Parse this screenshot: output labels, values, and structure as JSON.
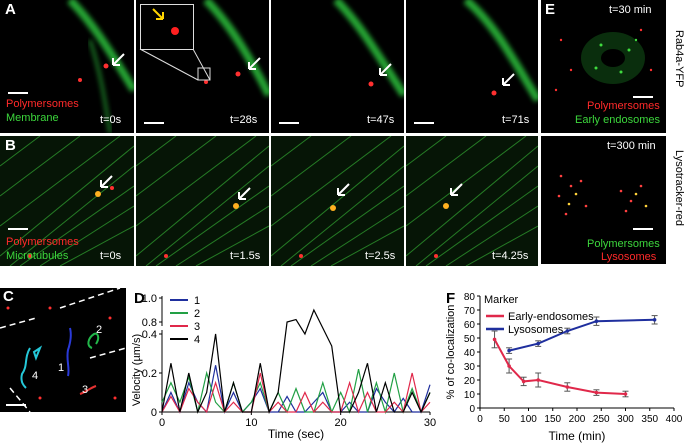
{
  "panels": {
    "A": {
      "letter": "A",
      "labels": [
        "Polymersomes",
        "Membrane"
      ],
      "times": [
        "t=0s",
        "t=28s",
        "t=47s",
        "t=71s"
      ]
    },
    "B": {
      "letter": "B",
      "labels": [
        "Polymersomes",
        "Microtubules"
      ],
      "times": [
        "t=0s",
        "t=1.5s",
        "t=2.5s",
        "t=4.25s"
      ]
    },
    "C": {
      "letter": "C",
      "track_labels": [
        "1",
        "2",
        "3",
        "4"
      ]
    },
    "D": {
      "letter": "D"
    },
    "E": {
      "letter": "E",
      "top_time": "t=30 min",
      "top_labels": [
        "Polymersomes",
        "Early endosomes"
      ],
      "top_side": "Rab4a-YFP",
      "bottom_time": "t=300 min",
      "bottom_labels": [
        "Polymersomes",
        "Lysosomes"
      ],
      "bottom_side": "Lysotracker-red"
    },
    "F": {
      "letter": "F"
    }
  },
  "colors": {
    "series1": "#1f2f9e",
    "series2": "#22a045",
    "series3": "#e0284a",
    "series4": "#000000",
    "early": "#e0284a",
    "lyso": "#1f2f9e"
  },
  "chart_data": [
    {
      "panel": "D",
      "type": "line",
      "xlabel": "Time (sec)",
      "ylabel": "Velocity (µm/s)",
      "xlim": [
        0,
        30
      ],
      "x_ticks": [
        "0",
        "10",
        "20",
        "30"
      ],
      "y_ticks_lower": [
        "0",
        "0.2",
        "0.4"
      ],
      "y_ticks_upper": [
        "0.8",
        "1.0"
      ],
      "legend_position": "top-left",
      "series": [
        {
          "name": "1",
          "x": [
            0,
            1,
            2,
            3,
            4,
            5,
            6,
            7,
            8,
            9,
            10,
            11,
            12,
            13,
            14,
            15,
            16,
            17,
            18,
            19,
            20,
            21,
            22,
            23,
            24,
            25,
            26,
            27,
            28,
            29,
            30
          ],
          "y": [
            0.0,
            0.1,
            0.0,
            0.15,
            0.05,
            0.0,
            0.24,
            0.0,
            0.1,
            0.0,
            0.05,
            0.12,
            0.0,
            0.0,
            0.08,
            0.0,
            0.0,
            0.05,
            0.1,
            0.0,
            0.0,
            0.05,
            0.0,
            0.0,
            0.12,
            0.05,
            0.0,
            0.07,
            0.0,
            0.0,
            0.14
          ]
        },
        {
          "name": "2",
          "x": [
            0,
            1,
            2,
            3,
            4,
            5,
            6,
            7,
            8,
            9,
            10,
            11,
            12,
            13,
            14,
            15,
            16,
            17,
            18,
            19,
            20,
            21,
            22,
            23,
            24,
            25,
            26,
            27,
            28,
            29,
            30
          ],
          "y": [
            0.05,
            0.15,
            0.05,
            0.18,
            0.0,
            0.2,
            0.05,
            0.0,
            0.15,
            0.0,
            0.05,
            0.15,
            0.0,
            0.1,
            0.0,
            0.12,
            0.0,
            0.0,
            0.15,
            0.0,
            0.1,
            0.0,
            0.22,
            0.0,
            0.15,
            0.0,
            0.2,
            0.0,
            0.12,
            0.0,
            0.1
          ]
        },
        {
          "name": "3",
          "x": [
            0,
            1,
            2,
            3,
            4,
            5,
            6,
            7,
            8,
            9,
            10,
            11,
            12,
            13,
            14,
            15,
            16,
            17,
            18,
            19,
            20,
            21,
            22,
            23,
            24,
            25,
            26,
            27,
            28,
            29,
            30
          ],
          "y": [
            0.0,
            0.08,
            0.0,
            0.12,
            0.05,
            0.0,
            0.15,
            0.0,
            0.05,
            0.0,
            0.0,
            0.2,
            0.0,
            0.05,
            0.0,
            0.0,
            0.1,
            0.0,
            0.05,
            0.0,
            0.0,
            0.15,
            0.0,
            0.1,
            0.0,
            0.0,
            0.05,
            0.0,
            0.2,
            0.0,
            0.05
          ]
        },
        {
          "name": "4",
          "x": [
            0,
            1,
            2,
            3,
            4,
            5,
            6,
            7,
            8,
            9,
            10,
            11,
            12,
            13,
            14,
            15,
            16,
            17,
            18,
            19,
            20,
            21,
            22,
            23,
            24,
            25,
            26,
            27,
            28,
            29,
            30
          ],
          "y": [
            0.0,
            0.25,
            0.0,
            0.2,
            0.0,
            0.1,
            0.4,
            0.0,
            0.15,
            0.0,
            0.0,
            0.25,
            0.0,
            0.1,
            0.8,
            0.82,
            0.7,
            0.9,
            0.75,
            0.6,
            0.0,
            0.0,
            0.1,
            0.25,
            0.0,
            0.15,
            0.0,
            0.0,
            0.1,
            0.0,
            0.1
          ]
        }
      ]
    },
    {
      "panel": "F",
      "type": "line",
      "xlabel": "Time (min)",
      "ylabel": "% of co-localization",
      "legend_title": "Marker",
      "legend_position": "top-left",
      "xlim": [
        0,
        400
      ],
      "ylim": [
        0,
        80
      ],
      "x_ticks": [
        "0",
        "50",
        "100",
        "150",
        "200",
        "250",
        "300",
        "350",
        "400"
      ],
      "y_ticks": [
        "0",
        "10",
        "20",
        "30",
        "40",
        "50",
        "60",
        "70",
        "80"
      ],
      "series": [
        {
          "name": "Early-endosomes",
          "x": [
            30,
            60,
            90,
            120,
            180,
            240,
            300
          ],
          "y": [
            49,
            30,
            19,
            20,
            15,
            11,
            10
          ],
          "err": [
            6,
            5,
            3,
            5,
            3,
            2,
            2
          ]
        },
        {
          "name": "Lysosomes",
          "x": [
            60,
            120,
            180,
            240,
            360
          ],
          "y": [
            41,
            46,
            55,
            62,
            63
          ],
          "err": [
            2,
            2,
            2,
            3,
            3
          ]
        }
      ]
    }
  ]
}
